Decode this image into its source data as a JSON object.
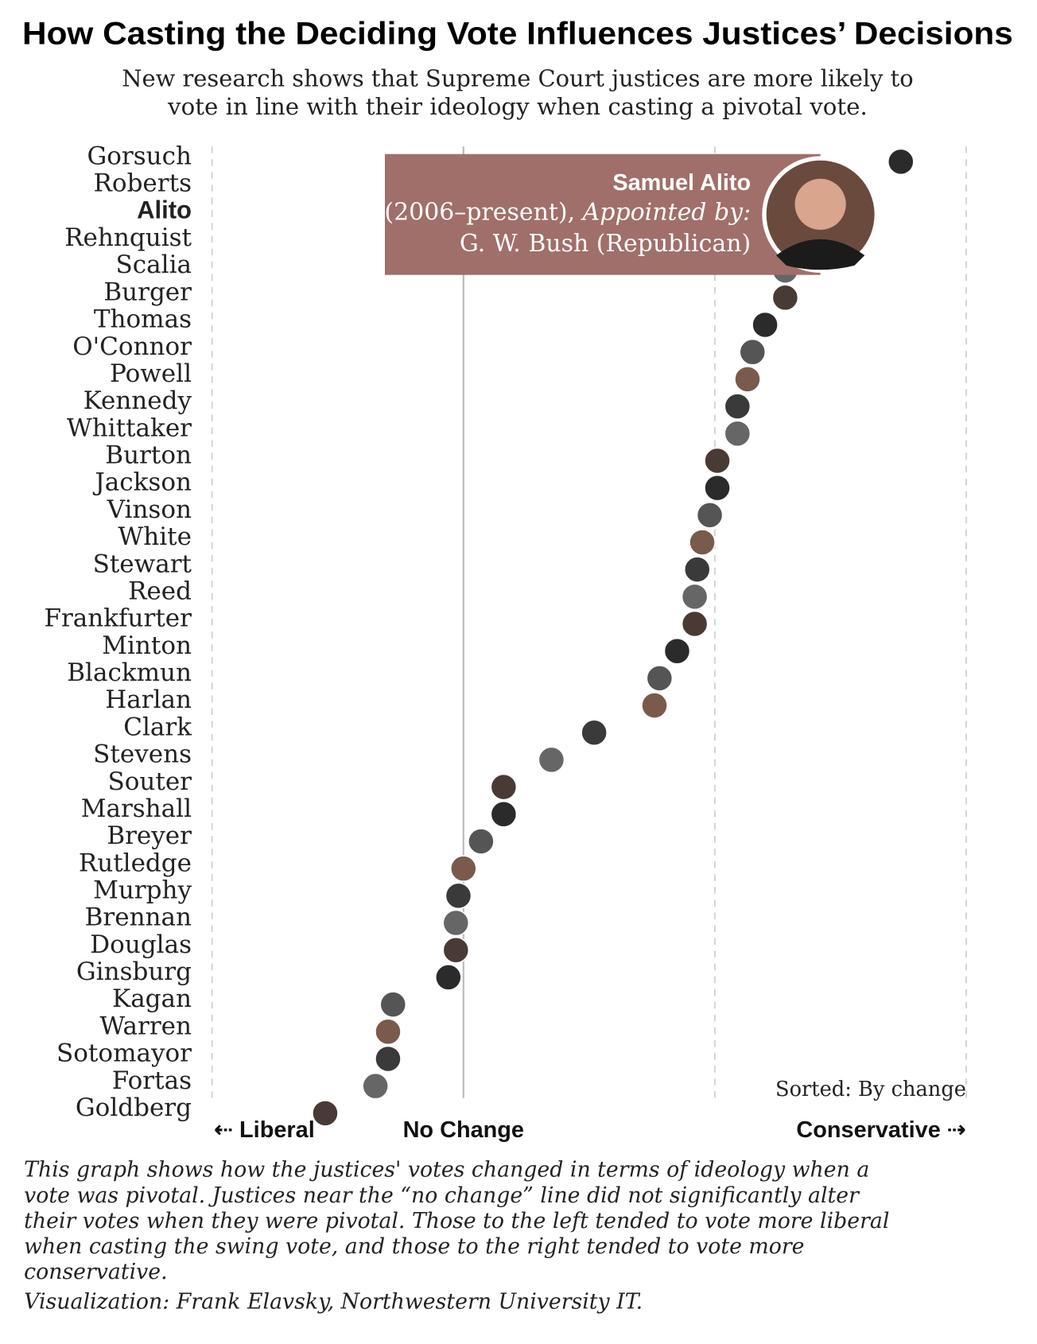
{
  "chart_data": {
    "type": "dot",
    "title": "How Casting the Deciding Vote Influences Justices’ Decisions",
    "subtitle_lines": [
      "New research shows that Supreme Court justices are more likely to",
      "vote in line with their ideology when casting a pivotal vote."
    ],
    "categories": [
      "Gorsuch",
      "Roberts",
      "Alito",
      "Rehnquist",
      "Scalia",
      "Burger",
      "Thomas",
      "O'Connor",
      "Powell",
      "Kennedy",
      "Whittaker",
      "Burton",
      "Jackson",
      "Vinson",
      "White",
      "Stewart",
      "Reed",
      "Frankfurter",
      "Minton",
      "Blackmun",
      "Harlan",
      "Clark",
      "Stevens",
      "Souter",
      "Marshall",
      "Breyer",
      "Rutledge",
      "Murphy",
      "Brennan",
      "Douglas",
      "Ginsburg",
      "Kagan",
      "Warren",
      "Sotomayor",
      "Fortas",
      "Goldberg"
    ],
    "values": [
      1.74,
      1.55,
      1.42,
      1.35,
      1.28,
      1.28,
      1.2,
      1.15,
      1.13,
      1.09,
      1.09,
      1.01,
      1.01,
      0.98,
      0.95,
      0.93,
      0.92,
      0.92,
      0.85,
      0.78,
      0.76,
      0.52,
      0.35,
      0.16,
      0.16,
      0.07,
      0,
      -0.02,
      -0.03,
      -0.03,
      -0.06,
      -0.28,
      -0.3,
      -0.3,
      -0.35,
      -0.55
    ],
    "color": "#3d3d3d",
    "highlight_index": 2,
    "xlim": [
      -1,
      2
    ],
    "xgrid": [
      -1,
      0,
      1,
      2
    ],
    "axis_labels": {
      "left": "⇠ Liberal",
      "center": "No Change",
      "right": "Conservative ⇢"
    },
    "sort_note": "Sorted: By change",
    "tooltip": {
      "name": "Samuel Alito",
      "term": "(2006–present), ",
      "appointed_label": "Appointed by:",
      "appointed_by": "G. W. Bush (Republican)",
      "color": "#a06f6a"
    },
    "note_lines": [
      "This graph shows how the justices' votes changed in terms of ideology when a",
      "vote was pivotal. Justices near the “no change” line did not significantly alter",
      "their votes when they were pivotal. Those to the left tended to vote more liberal",
      "when casting the swing vote, and those to the right tended to vote more",
      "conservative."
    ],
    "credit": "Visualization: Frank Elavsky, Northwestern University IT."
  }
}
